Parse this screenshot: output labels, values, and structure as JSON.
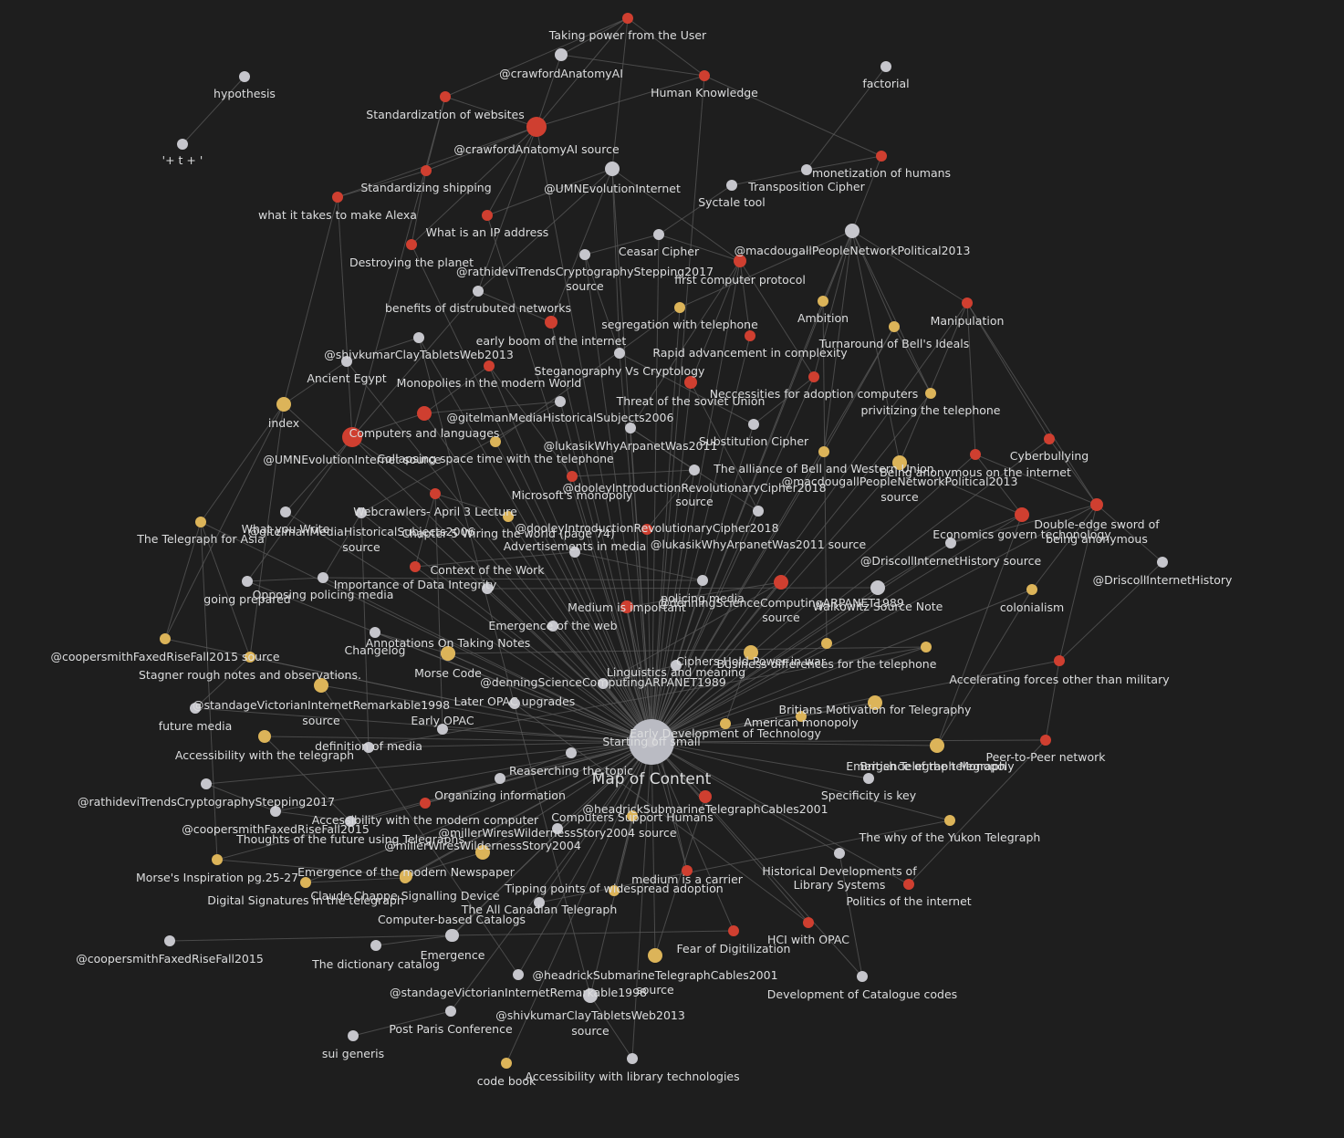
{
  "colors": {
    "background": "#1e1e1e",
    "edge": "#5a5a5a",
    "note": "#c6c6cc",
    "red_group": "#cf3f30",
    "yellow_group": "#dcb459",
    "hub": "#babbc3",
    "label": "#dcddde"
  },
  "graph": {
    "nodes": [
      {
        "id": "moc",
        "label": "Map of Content",
        "group": "hub"
      },
      {
        "id": "taking_power",
        "label": "Taking power from the User",
        "group": "red"
      },
      {
        "id": "crawford",
        "label": "@crawfordAnatomyAI",
        "group": "note"
      },
      {
        "id": "human_knowledge",
        "label": "Human Knowledge",
        "group": "red"
      },
      {
        "id": "hypothesis",
        "label": "hypothesis",
        "group": "note"
      },
      {
        "id": "factorial",
        "label": "factorial",
        "group": "note"
      },
      {
        "id": "std_websites",
        "label": "Standardization of websites",
        "group": "red"
      },
      {
        "id": "crawford_src",
        "label": "@crawfordAnatomyAI source",
        "group": "red"
      },
      {
        "id": "tplus",
        "label": "'+ t + '",
        "group": "note"
      },
      {
        "id": "monetization",
        "label": "monetization of humans",
        "group": "red"
      },
      {
        "id": "umn_evol",
        "label": "@UMNEvolutionInternet",
        "group": "note"
      },
      {
        "id": "std_shipping",
        "label": "Standardizing shipping",
        "group": "red"
      },
      {
        "id": "transposition",
        "label": "Transposition Cipher",
        "group": "note"
      },
      {
        "id": "alexa",
        "label": "what it takes to make Alexa",
        "group": "red"
      },
      {
        "id": "syctale",
        "label": "Syctale tool",
        "group": "note"
      },
      {
        "id": "ip_address",
        "label": "What is an IP address",
        "group": "red"
      },
      {
        "id": "macdougall",
        "label": "@macdougallPeopleNetworkPolitical2013",
        "group": "note"
      },
      {
        "id": "ceasar",
        "label": "Ceasar Cipher",
        "group": "note"
      },
      {
        "id": "destroying",
        "label": "Destroying the planet",
        "group": "red"
      },
      {
        "id": "rathidevi_src",
        "label": "@rathideviTrendsCryptographyStepping2017 source",
        "group": "note"
      },
      {
        "id": "first_computer",
        "label": "first computer protocol",
        "group": "red"
      },
      {
        "id": "ambition",
        "label": "Ambition",
        "group": "yellow"
      },
      {
        "id": "manipulation",
        "label": "Manipulation",
        "group": "red"
      },
      {
        "id": "benefits",
        "label": "benefits of distrubuted networks",
        "group": "note"
      },
      {
        "id": "segregation",
        "label": "segregation with telephone",
        "group": "yellow"
      },
      {
        "id": "early_boom",
        "label": "early boom of the internet",
        "group": "red"
      },
      {
        "id": "turnaround",
        "label": "Turnaround of Bell's Ideals",
        "group": "yellow"
      },
      {
        "id": "shivkumar",
        "label": "@shivkumarClayTabletsWeb2013",
        "group": "note"
      },
      {
        "id": "rapid",
        "label": "Rapid advancement in complexity",
        "group": "red"
      },
      {
        "id": "ancient_egypt",
        "label": "Ancient Egypt",
        "group": "note"
      },
      {
        "id": "steganography",
        "label": "Steganography Vs Cryptology",
        "group": "note"
      },
      {
        "id": "monopolies",
        "label": "Monopolies in the modern World",
        "group": "red"
      },
      {
        "id": "neccessities",
        "label": "Neccessities for adoption computers",
        "group": "red"
      },
      {
        "id": "threat_soviet",
        "label": "Threat of the soviet Union",
        "group": "red"
      },
      {
        "id": "privitizing",
        "label": "privitizing the telephone",
        "group": "yellow"
      },
      {
        "id": "index",
        "label": "index",
        "group": "yellow"
      },
      {
        "id": "gitelman",
        "label": "@gitelmanMediaHistoricalSubjects2006",
        "group": "note"
      },
      {
        "id": "computers_lang",
        "label": "Computers and languages",
        "group": "red"
      },
      {
        "id": "substitution",
        "label": "Substitution Cipher",
        "group": "note"
      },
      {
        "id": "umn_src",
        "label": "@UMNEvolutionInternet source",
        "group": "red"
      },
      {
        "id": "lukasik",
        "label": "@lukasikWhyArpanetWas2011",
        "group": "note"
      },
      {
        "id": "cyberbullying",
        "label": "Cyberbullying",
        "group": "red"
      },
      {
        "id": "collapsing",
        "label": "Collapsing space time with the telephone",
        "group": "yellow"
      },
      {
        "id": "alliance",
        "label": "The alliance of Bell and Western Union",
        "group": "yellow"
      },
      {
        "id": "anonymous",
        "label": "Being anonymous on the internet",
        "group": "red"
      },
      {
        "id": "dooley_src",
        "label": "@dooleyIntroductionRevolutionaryCipher2018 source",
        "group": "note"
      },
      {
        "id": "macdougall_src",
        "label": "@macdougallPeopleNetworkPolitical2013 source",
        "group": "yellow"
      },
      {
        "id": "microsoft",
        "label": "Microsoft's monopoly",
        "group": "red"
      },
      {
        "id": "webcrawlers",
        "label": "Webcrawlers- April 3 Lecture",
        "group": "red"
      },
      {
        "id": "double_edge",
        "label": "Double-edge sword of being anonymous",
        "group": "red"
      },
      {
        "id": "what_you_write",
        "label": "What you Write",
        "group": "note"
      },
      {
        "id": "gitelman_src",
        "label": "@gitelmanMediaHistoricalSubjects2006 source",
        "group": "note"
      },
      {
        "id": "chapter5",
        "label": "Chapter 5 Wiring the world (page 74)",
        "group": "yellow"
      },
      {
        "id": "dooley",
        "label": "@dooleyIntroductionRevolutionaryCipher2018",
        "group": "red"
      },
      {
        "id": "telegraph_asia",
        "label": "The Telegraph for Asia",
        "group": "yellow"
      },
      {
        "id": "economics",
        "label": "Economics govern techonology",
        "group": "red"
      },
      {
        "id": "advertisements",
        "label": "Advertisements in media",
        "group": "note"
      },
      {
        "id": "lukasik_src",
        "label": "@lukasikWhyArpanetWas2011 source",
        "group": "note"
      },
      {
        "id": "driscoll_src",
        "label": "@DriscollInternetHistory source",
        "group": "note"
      },
      {
        "id": "driscoll",
        "label": "@DriscollInternetHistory",
        "group": "note"
      },
      {
        "id": "context_work",
        "label": "Context of the Work",
        "group": "note"
      },
      {
        "id": "importance_data",
        "label": "Importance of Data Integrity",
        "group": "red"
      },
      {
        "id": "going_prepared",
        "label": "going prepared",
        "group": "note"
      },
      {
        "id": "opposing_policing",
        "label": "Opposing policing media",
        "group": "note"
      },
      {
        "id": "policing_media",
        "label": "policing media",
        "group": "note"
      },
      {
        "id": "denning_src",
        "label": "@denningScienceComputingARPANET1989 source",
        "group": "red"
      },
      {
        "id": "colonialism",
        "label": "colonialism",
        "group": "yellow"
      },
      {
        "id": "walkowitz",
        "label": "Walkowitz Source Note",
        "group": "note"
      },
      {
        "id": "medium_important",
        "label": "Medium is important",
        "group": "red"
      },
      {
        "id": "emergence_web",
        "label": "Emergence of the web",
        "group": "note"
      },
      {
        "id": "coopersmith_src",
        "label": "@coopersmithFaxedRiseFall2015 source",
        "group": "yellow"
      },
      {
        "id": "changelog",
        "label": "Changelog",
        "group": "note"
      },
      {
        "id": "annotations",
        "label": "Annotations On Taking Notes",
        "group": "note"
      },
      {
        "id": "ciphers_power",
        "label": "Ciphers Hold Power in war",
        "group": "yellow"
      },
      {
        "id": "business_diff",
        "label": "Business differences for the telephone",
        "group": "yellow"
      },
      {
        "id": "stagner",
        "label": "Stagner rough notes and observations.",
        "group": "yellow"
      },
      {
        "id": "morse_code",
        "label": "Morse Code",
        "group": "yellow"
      },
      {
        "id": "linguistics",
        "label": "Linguistics and meaning",
        "group": "note"
      },
      {
        "id": "accelerating",
        "label": "Accelerating forces other than military",
        "group": "red"
      },
      {
        "id": "denning",
        "label": "@denningScienceComputingARPANET1989",
        "group": "note"
      },
      {
        "id": "standage_src",
        "label": "@standageVictorianInternetRemarkable1998 source",
        "group": "yellow"
      },
      {
        "id": "later_opac",
        "label": "Later OPAC upgrades",
        "group": "note"
      },
      {
        "id": "britians_motivation",
        "label": "Britians Motivation for Telegraphy",
        "group": "yellow"
      },
      {
        "id": "future_media",
        "label": "future media",
        "group": "note"
      },
      {
        "id": "early_opac",
        "label": "Early OPAC",
        "group": "note"
      },
      {
        "id": "american_monopoly",
        "label": "American monopoly",
        "group": "yellow"
      },
      {
        "id": "early_dev",
        "label": "Early Development of Technology",
        "group": "yellow"
      },
      {
        "id": "starting_small",
        "label": "Starting off small",
        "group": "note"
      },
      {
        "id": "accessibility_tel",
        "label": "Accessibility with the telegraph",
        "group": "yellow"
      },
      {
        "id": "definition_media",
        "label": "definition of media",
        "group": "note"
      },
      {
        "id": "emergence_telegraph",
        "label": "Emergence of the telegraph",
        "group": "yellow"
      },
      {
        "id": "british_monopoly",
        "label": "British Telegraph Monopoly",
        "group": "yellow"
      },
      {
        "id": "p2p",
        "label": "Peer-to-Peer network",
        "group": "red"
      },
      {
        "id": "researching",
        "label": "Reaserching the topic",
        "group": "note"
      },
      {
        "id": "organizing",
        "label": "Organizing information",
        "group": "note"
      },
      {
        "id": "specificity",
        "label": "Specificity is key",
        "group": "note"
      },
      {
        "id": "rathidevi",
        "label": "@rathideviTrendsCryptographyStepping2017",
        "group": "note"
      },
      {
        "id": "headrick",
        "label": "@headrickSubmarineTelegraphCables2001",
        "group": "red"
      },
      {
        "id": "accessibility_comp",
        "label": "Accessibility with the modern computer",
        "group": "red"
      },
      {
        "id": "computers_humans",
        "label": "Computers Support Humans",
        "group": "yellow"
      },
      {
        "id": "coopersmith_src2",
        "label": "@coopersmithFaxedRiseFall2015",
        "group": "note"
      },
      {
        "id": "miller_src",
        "label": "@millerWiresWildernessStory2004 source",
        "group": "note"
      },
      {
        "id": "thoughts_future",
        "label": "Thoughts of the future using Telegraphs",
        "group": "note"
      },
      {
        "id": "yukon",
        "label": "The why of the Yukon Telegraph",
        "group": "yellow"
      },
      {
        "id": "miller",
        "label": "@millerWiresWildernessStory2004",
        "group": "yellow"
      },
      {
        "id": "morse_inspiration",
        "label": "Morse's Inspiration pg.25-27",
        "group": "yellow"
      },
      {
        "id": "emergence_newspaper",
        "label": "Emergence of the modern Newspaper",
        "group": "yellow"
      },
      {
        "id": "historical_dev",
        "label": "Historical Developments of Library Systems",
        "group": "note"
      },
      {
        "id": "medium_carrier",
        "label": "medium is a carrier",
        "group": "red"
      },
      {
        "id": "tipping_points",
        "label": "Tipping points of widespread adoption",
        "group": "yellow"
      },
      {
        "id": "politics",
        "label": "Politics of the internet",
        "group": "red"
      },
      {
        "id": "digital_signatures",
        "label": "Digital Signatures in the telegraph",
        "group": "yellow"
      },
      {
        "id": "chappe",
        "label": "Claude Chappe Signalling Device",
        "group": "yellow"
      },
      {
        "id": "all_canadian",
        "label": "The All Canadian Telegraph",
        "group": "note"
      },
      {
        "id": "catalogs",
        "label": "Computer-based Catalogs",
        "group": "note"
      },
      {
        "id": "hci_opac",
        "label": "HCI with OPAC",
        "group": "red"
      },
      {
        "id": "fear_digitization",
        "label": "Fear of Digitilization",
        "group": "red"
      },
      {
        "id": "coopersmith",
        "label": "@coopersmithFaxedRiseFall2015",
        "group": "note"
      },
      {
        "id": "emergence",
        "label": "Emergence",
        "group": "note"
      },
      {
        "id": "dictionary",
        "label": "The dictionary catalog",
        "group": "note"
      },
      {
        "id": "headrick_src",
        "label": "@headrickSubmarineTelegraphCables2001 source",
        "group": "yellow"
      },
      {
        "id": "development_codes",
        "label": "Development of Catalogue codes",
        "group": "note"
      },
      {
        "id": "standage",
        "label": "@standageVictorianInternetRemarkable1998",
        "group": "note"
      },
      {
        "id": "shivkumar_src",
        "label": "@shivkumarClayTabletsWeb2013 source",
        "group": "note"
      },
      {
        "id": "post_paris",
        "label": "Post Paris Conference",
        "group": "note"
      },
      {
        "id": "sui_generis",
        "label": "sui generis",
        "group": "note"
      },
      {
        "id": "code_book",
        "label": "code book",
        "group": "yellow"
      },
      {
        "id": "accessibility_lib",
        "label": "Accessibility with library technologies",
        "group": "note"
      }
    ]
  }
}
